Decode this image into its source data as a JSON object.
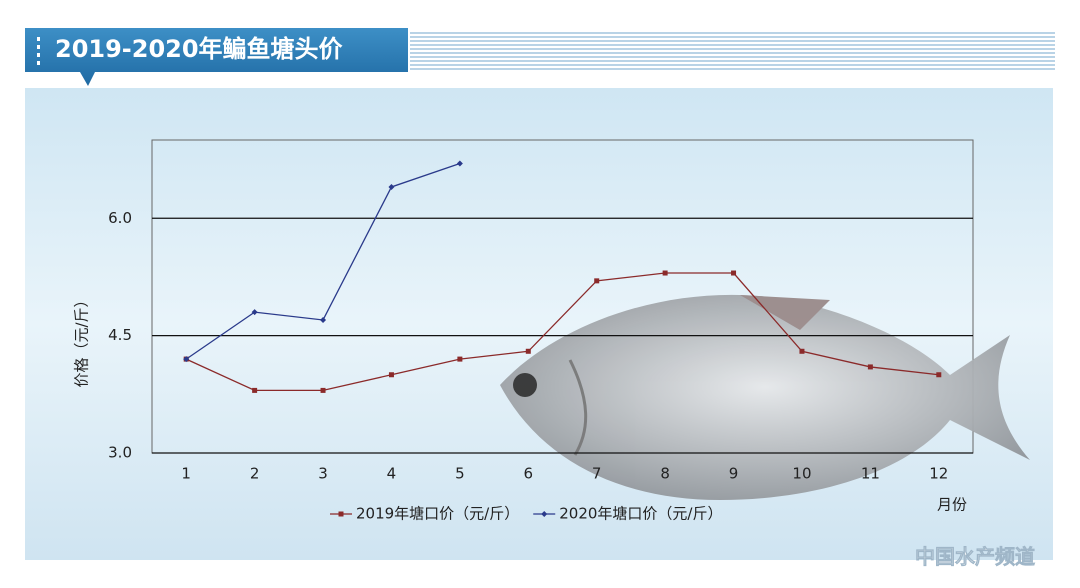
{
  "chart_data": {
    "type": "line",
    "title": "2019-2020年鳊鱼塘头价",
    "y_label": "价格（元/斤）",
    "x_label": "月份",
    "watermark": "中国水产频道",
    "categories": [
      "1",
      "2",
      "3",
      "4",
      "5",
      "6",
      "7",
      "8",
      "9",
      "10",
      "11",
      "12"
    ],
    "series": [
      {
        "name": "2019年塘口价（元/斤）",
        "color": "#8b2a2a",
        "marker": "square",
        "values": [
          4.2,
          3.8,
          3.8,
          4.0,
          4.2,
          4.3,
          5.2,
          5.3,
          5.3,
          4.3,
          4.1,
          4.0
        ]
      },
      {
        "name": "2020年塘口价（元/斤）",
        "color": "#2a3a8b",
        "marker": "diamond",
        "values": [
          4.2,
          4.8,
          4.7,
          6.4,
          6.7,
          null,
          null,
          null,
          null,
          null,
          null,
          null
        ]
      }
    ],
    "ylim": [
      3,
      7
    ],
    "yticks": [
      {
        "value": 3,
        "label": "3.0"
      },
      {
        "value": 4.5,
        "label": "4.5"
      },
      {
        "value": 6,
        "label": "6.0"
      }
    ],
    "grid": true,
    "legend": "bottom"
  }
}
